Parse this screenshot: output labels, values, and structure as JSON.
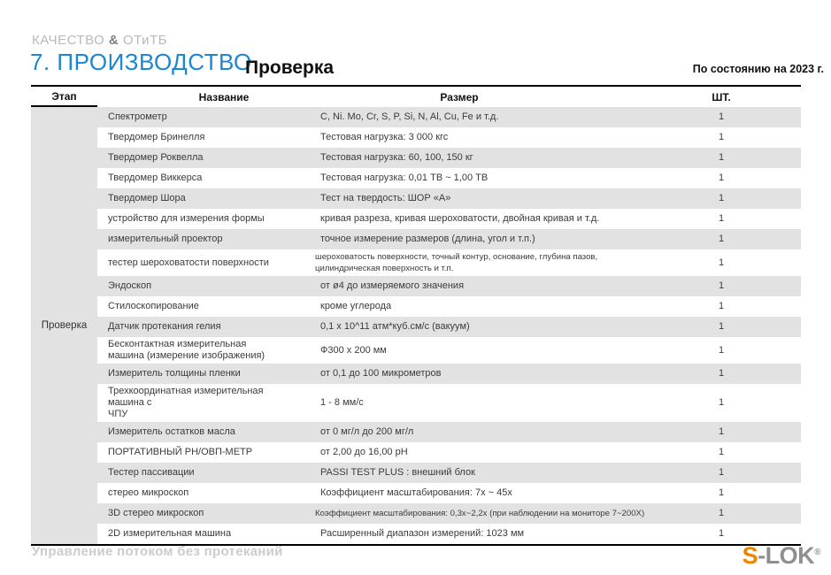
{
  "header": {
    "eyebrow_prefix": "КАЧЕСТВО ",
    "eyebrow_amp": "&",
    "eyebrow_suffix": " ОТиТБ",
    "section_title": "7. ПРОИЗВОДСТВО",
    "page_title": "Проверка",
    "as_of": "По состоянию на 2023 г."
  },
  "table": {
    "columns": [
      "Этап",
      "Название",
      "Размер",
      "ШТ."
    ],
    "stage": "Проверка",
    "rows": [
      {
        "name": "Спектрометр",
        "size": "C, Ni. Mo, Cr, S, P, Si, N, Al, Cu, Fe и т.д.",
        "qty": "1"
      },
      {
        "name": "Твердомер Бринелля",
        "size": "Тестовая нагрузка: 3 000 кгс",
        "qty": "1"
      },
      {
        "name": "Твердомер Роквелла",
        "size": "Тестовая нагрузка: 60, 100, 150 кг",
        "qty": "1"
      },
      {
        "name": "Твердомер Виккерса",
        "size": "Тестовая нагрузка: 0,01 ТВ ~ 1,00 ТВ",
        "qty": "1"
      },
      {
        "name": "Твердомер Шора",
        "size": "Тест на твердость: ШОР «А»",
        "qty": "1"
      },
      {
        "name": "устройство для измерения формы",
        "size": "кривая разреза, кривая шероховатости, двойная кривая и т.д.",
        "qty": "1"
      },
      {
        "name": "измерительный проектор",
        "size": "точное измерение размеров (длина, угол и т.п.)",
        "qty": "1"
      },
      {
        "name": "тестер шероховатости поверхности",
        "size": "шероховатость поверхности, точный контур, основание, глубина пазов,\nцилиндрическая поверхность и т.п.",
        "qty": "1"
      },
      {
        "name": "Эндоскоп",
        "size": "от ø4 до измеряемого значения",
        "qty": "1"
      },
      {
        "name": "Стилоскопирование",
        "size": "кроме углерода",
        "qty": "1"
      },
      {
        "name": "Датчик протекания гелия",
        "size": "0,1 x 10^11 атм*куб.см/с (вакуум)",
        "qty": "1"
      },
      {
        "name": "Бесконтактная измерительная\nмашина (измерение изображения)",
        "size": "Ф300 x 200 мм",
        "qty": "1"
      },
      {
        "name": "Измеритель толщины пленки",
        "size": "от 0,1 до 100 микрометров",
        "qty": "1"
      },
      {
        "name": "Трехкоординатная измерительная машина с\nЧПУ",
        "size": "1 - 8 мм/с",
        "qty": "1"
      },
      {
        "name": "Измеритель остатков масла",
        "size": "от 0 мг/л до 200 мг/л",
        "qty": "1"
      },
      {
        "name": "ПОРТАТИВНЫЙ PH/ОВП-МЕТР",
        "size": "от 2,00 до 16,00 pH",
        "qty": "1"
      },
      {
        "name": "Тестер пассивации",
        "size": "PASSI TEST PLUS : внешний блок",
        "qty": "1"
      },
      {
        "name": "стерео микроскоп",
        "size": "Коэффициент масштабирования: 7x ~ 45x",
        "qty": "1"
      },
      {
        "name": "3D стерео микроскоп",
        "size": "Коэффициент масштабирования: 0,3x~2,2x (при наблюдении на мониторе 7~200X)",
        "qty": "1"
      },
      {
        "name": "2D измерительная машина",
        "size": "Расширенный диапазон измерений: 1023 мм",
        "qty": "1"
      }
    ]
  },
  "footer": {
    "tagline": "Управление потоком без протеканий",
    "logo_s": "S",
    "logo_rest": "-LOK",
    "logo_reg": "®"
  },
  "colors": {
    "accent_blue": "#1c86d1",
    "stripe_gray": "#e2e2e2",
    "logo_orange": "#f08300",
    "logo_gray": "#8f8f8f"
  }
}
